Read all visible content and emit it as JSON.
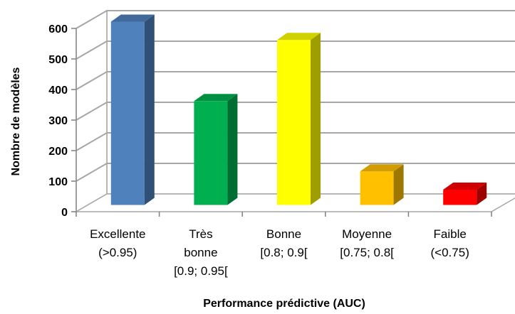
{
  "chart_data": {
    "type": "bar",
    "style": "3d-column",
    "title": "",
    "xlabel": "Performance prédictive (AUC)",
    "ylabel": "Nombre de modèles",
    "ylim": [
      0,
      600
    ],
    "yticks": [
      0,
      100,
      200,
      300,
      400,
      500,
      600
    ],
    "grid": true,
    "legend": "none",
    "categories": [
      [
        "Excellente",
        "(>0.95)"
      ],
      [
        "Très",
        "bonne",
        "[0.9; 0.95["
      ],
      [
        "Bonne",
        "[0.8; 0.9["
      ],
      [
        "Moyenne",
        "[0.75; 0.8["
      ],
      [
        "Faible",
        "(<0.75)"
      ]
    ],
    "values": [
      600,
      340,
      540,
      110,
      50
    ],
    "colors": [
      "#4F81BD",
      "#00B050",
      "#FFFF00",
      "#FFC000",
      "#FF0000"
    ]
  }
}
